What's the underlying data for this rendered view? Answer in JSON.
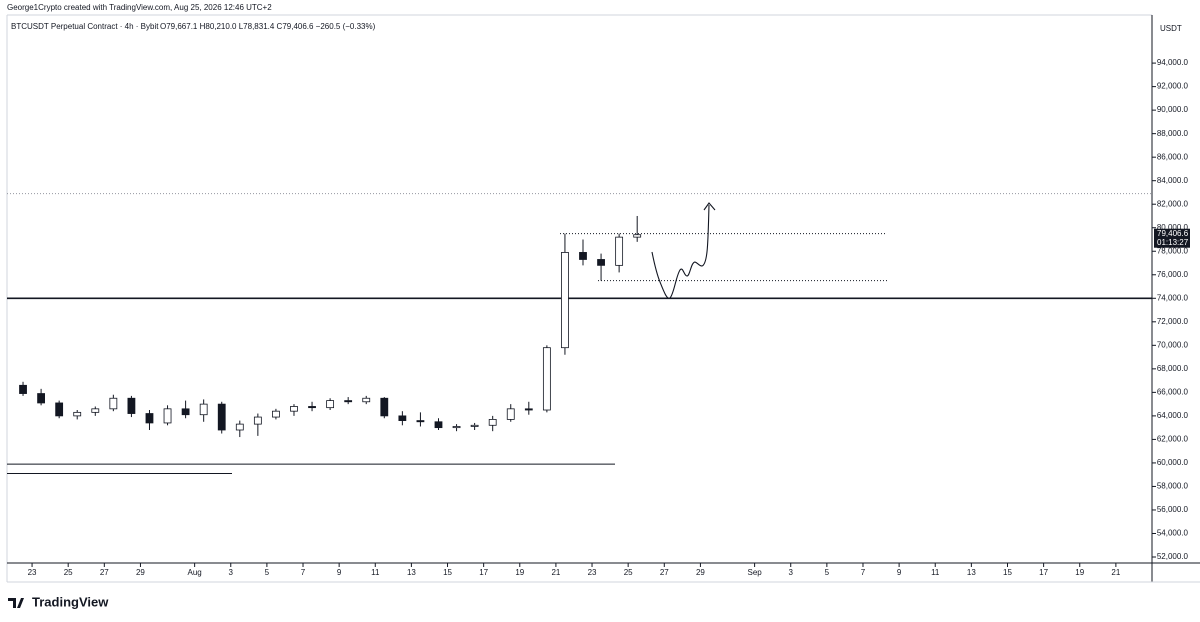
{
  "header": {
    "attribution": "George1Crypto created with TradingView.com, Aug 25, 2026 12:46 UTC+2",
    "logo": "TradingView"
  },
  "chart_data": {
    "type": "candlestick",
    "symbol": "BTCUSDT Perpetual Contract · 4h · Bybit",
    "ohlc": "O79,667.1 H80,210.0 L78,831.4 C79,406.6 −260.5 (−0.33%)",
    "axis_unit": "USDT",
    "categories": [
      null,
      "23",
      null,
      "25",
      null,
      "27",
      null,
      "29",
      null,
      null,
      "Aug",
      null,
      "3",
      null,
      "5",
      null,
      "7",
      null,
      "9",
      null,
      "11",
      null,
      "13",
      null,
      "15",
      null,
      "17",
      null,
      "19",
      null,
      "21",
      null,
      "23",
      null,
      "25",
      null,
      "27",
      null,
      "29",
      null,
      null,
      "Sep",
      null,
      "3",
      null,
      "5",
      null,
      "7",
      null,
      "9",
      null,
      "11",
      null,
      "13",
      null,
      "15",
      null,
      "17",
      null,
      "19",
      null,
      "21",
      null
    ],
    "open": [
      66600,
      65900,
      65100,
      64000,
      64300,
      64600,
      65500,
      64200,
      63400,
      64600,
      64100,
      65000,
      62800,
      63300,
      63900,
      64400,
      64800,
      64700,
      65300,
      65200,
      65500,
      64000,
      63600,
      63500,
      63000,
      63100,
      63200,
      63700,
      64600,
      64500,
      69800,
      77900,
      77300,
      76800,
      79200,
      null,
      null,
      null,
      null,
      null,
      null,
      null,
      null,
      null,
      null,
      null,
      null,
      null,
      null,
      null,
      null,
      null,
      null,
      null,
      null,
      null,
      null,
      null,
      null,
      null,
      null,
      null,
      null
    ],
    "high": [
      66900,
      66300,
      65300,
      64500,
      64800,
      65800,
      65700,
      64500,
      64900,
      65300,
      65400,
      65200,
      63600,
      64200,
      64600,
      65000,
      65200,
      65500,
      65600,
      65700,
      65600,
      64400,
      64300,
      63800,
      63300,
      63400,
      64000,
      65000,
      65200,
      70000,
      79500,
      79000,
      77800,
      79500,
      81000,
      null,
      null,
      null,
      null,
      null,
      null,
      null,
      null,
      null,
      null,
      null,
      null,
      null,
      null,
      null,
      null,
      null,
      null,
      null,
      null,
      null,
      null,
      null,
      null,
      null,
      null,
      null,
      null
    ],
    "low": [
      65700,
      64900,
      63800,
      63700,
      64000,
      64400,
      63900,
      62800,
      63200,
      63800,
      63500,
      62500,
      62200,
      62300,
      63700,
      64000,
      64400,
      64500,
      65000,
      65000,
      63800,
      63200,
      63100,
      62800,
      62700,
      62800,
      62700,
      63500,
      64100,
      64300,
      69200,
      76800,
      75500,
      76200,
      78800,
      null,
      null,
      null,
      null,
      null,
      null,
      null,
      null,
      null,
      null,
      null,
      null,
      null,
      null,
      null,
      null,
      null,
      null,
      null,
      null,
      null,
      null,
      null,
      null,
      null,
      null,
      null,
      null
    ],
    "close": [
      65900,
      65100,
      64000,
      64300,
      64600,
      65500,
      64200,
      63400,
      64600,
      64100,
      65000,
      62800,
      63300,
      63900,
      64400,
      64800,
      64700,
      65300,
      65200,
      65500,
      64000,
      63600,
      63500,
      63000,
      63100,
      63200,
      63700,
      64600,
      64500,
      69800,
      77900,
      77300,
      76800,
      79200,
      79406.6,
      null,
      null,
      null,
      null,
      null,
      null,
      null,
      null,
      null,
      null,
      null,
      null,
      null,
      null,
      null,
      null,
      null,
      null,
      null,
      null,
      null,
      null,
      null,
      null,
      null,
      null,
      null,
      null
    ],
    "up_color": "#ffffff",
    "down_color": "#131722",
    "border_color": "#131722",
    "ylim": [
      51490,
      98090
    ],
    "yticks": [
      {
        "value": 52000,
        "label": "52,000.0"
      },
      {
        "value": 54000,
        "label": "54,000.0"
      },
      {
        "value": 56000,
        "label": "56,000.0"
      },
      {
        "value": 58000,
        "label": "58,000.0"
      },
      {
        "value": 60000,
        "label": "60,000.0"
      },
      {
        "value": 62000,
        "label": "62,000.0"
      },
      {
        "value": 64000,
        "label": "64,000.0"
      },
      {
        "value": 66000,
        "label": "66,000.0"
      },
      {
        "value": 68000,
        "label": "68,000.0"
      },
      {
        "value": 70000,
        "label": "70,000.0"
      },
      {
        "value": 72000,
        "label": "72,000.0"
      },
      {
        "value": 74000,
        "label": "74,000.0"
      },
      {
        "value": 76000,
        "label": "76,000.0"
      },
      {
        "value": 78000,
        "label": "78,000.0"
      },
      {
        "value": 80000,
        "label": "80,000.0"
      },
      {
        "value": 82000,
        "label": "82,000.0"
      },
      {
        "value": 84000,
        "label": "84,000.0"
      },
      {
        "value": 86000,
        "label": "86,000.0"
      },
      {
        "value": 88000,
        "label": "88,000.0"
      },
      {
        "value": 90000,
        "label": "90,000.0"
      },
      {
        "value": 92000,
        "label": "92,000.0"
      },
      {
        "value": 94000,
        "label": "94,000.0"
      }
    ],
    "last_price": {
      "value": 79406.6,
      "label": "79,406.6"
    },
    "countdown": "01:13:27",
    "levels": [
      {
        "price": 74000,
        "style": "solid"
      },
      {
        "price": 82900,
        "style": "dotted"
      },
      {
        "price": 79500,
        "style": "dotted"
      },
      {
        "price": 75500,
        "style": "dotted"
      },
      {
        "price": 59900,
        "style": "solid"
      },
      {
        "price": 59100,
        "style": "solid"
      }
    ]
  }
}
